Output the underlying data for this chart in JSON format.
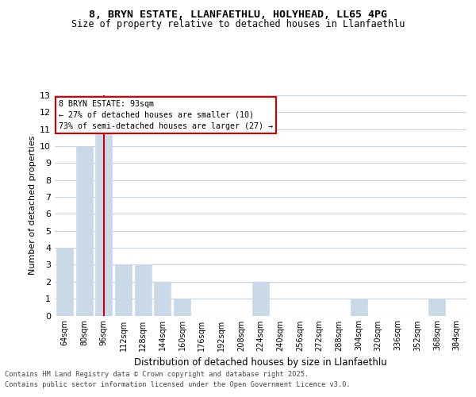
{
  "title1": "8, BRYN ESTATE, LLANFAETHLU, HOLYHEAD, LL65 4PG",
  "title2": "Size of property relative to detached houses in Llanfaethlu",
  "xlabel": "Distribution of detached houses by size in Llanfaethlu",
  "ylabel": "Number of detached properties",
  "footer1": "Contains HM Land Registry data © Crown copyright and database right 2025.",
  "footer2": "Contains public sector information licensed under the Open Government Licence v3.0.",
  "annotation_title": "8 BRYN ESTATE: 93sqm",
  "annotation_line1": "← 27% of detached houses are smaller (10)",
  "annotation_line2": "73% of semi-detached houses are larger (27) →",
  "bar_color": "#c9d9e8",
  "marker_line_color": "#cc0000",
  "annotation_box_color": "#cc0000",
  "background_color": "#ffffff",
  "grid_color": "#c8d4e0",
  "categories": [
    "64sqm",
    "80sqm",
    "96sqm",
    "112sqm",
    "128sqm",
    "144sqm",
    "160sqm",
    "176sqm",
    "192sqm",
    "208sqm",
    "224sqm",
    "240sqm",
    "256sqm",
    "272sqm",
    "288sqm",
    "304sqm",
    "320sqm",
    "336sqm",
    "352sqm",
    "368sqm",
    "384sqm"
  ],
  "values": [
    4,
    10,
    11,
    3,
    3,
    2,
    1,
    0,
    0,
    0,
    2,
    0,
    0,
    0,
    0,
    1,
    0,
    0,
    0,
    1,
    0
  ],
  "marker_index": 2,
  "ylim": [
    0,
    13
  ],
  "yticks": [
    0,
    1,
    2,
    3,
    4,
    5,
    6,
    7,
    8,
    9,
    10,
    11,
    12,
    13
  ]
}
